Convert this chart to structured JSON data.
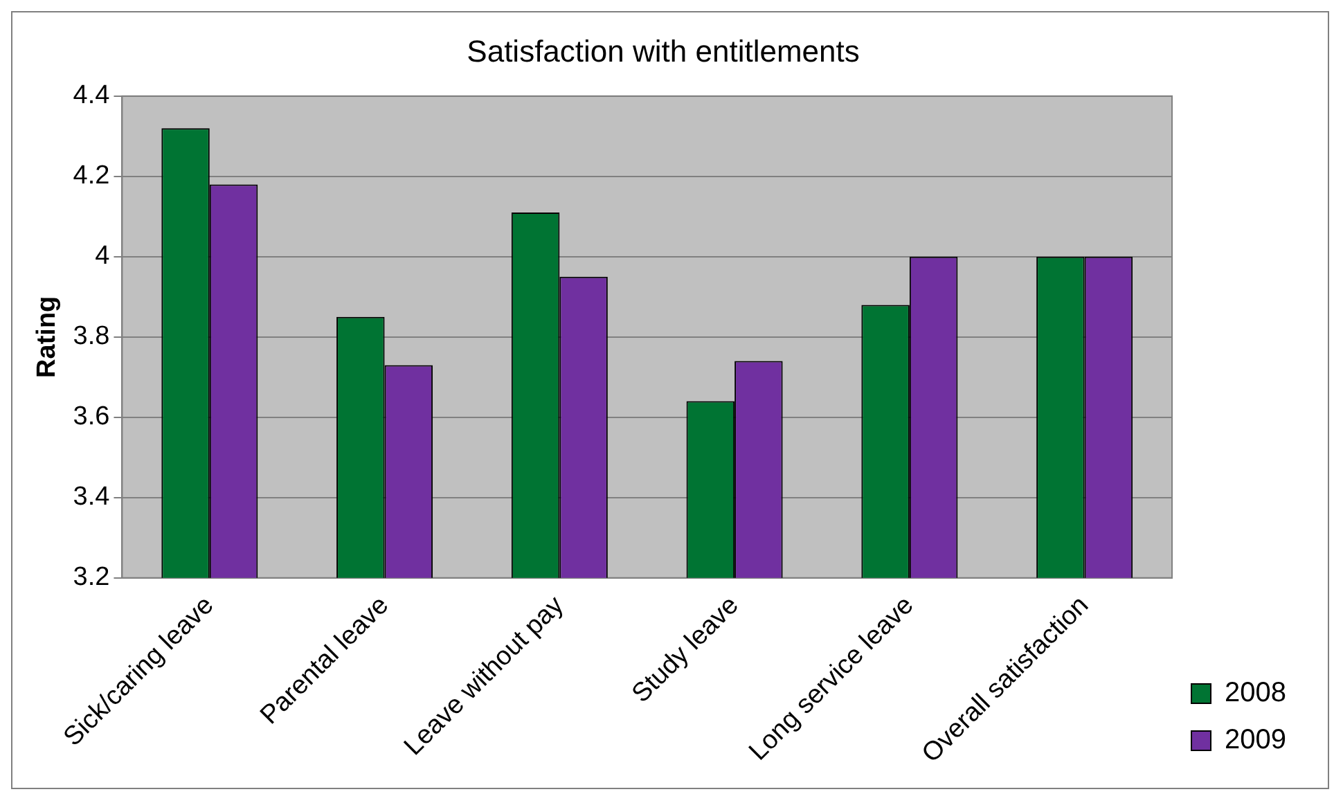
{
  "chart_data": {
    "type": "bar",
    "title": "Satisfaction with entitlements",
    "ylabel": "Rating",
    "categories": [
      "Sick/caring leave",
      "Parental leave",
      "Leave without pay",
      "Study leave",
      "Long service leave",
      "Overall satisfaction"
    ],
    "series": [
      {
        "name": "2008",
        "color": "#007433",
        "values": [
          4.32,
          3.85,
          4.11,
          3.64,
          3.88,
          4.0
        ]
      },
      {
        "name": "2009",
        "color": "#7030a0",
        "values": [
          4.18,
          3.73,
          3.95,
          3.74,
          4.0,
          4.0
        ]
      }
    ],
    "ylim": [
      3.2,
      4.4
    ],
    "yticks": [
      {
        "value": 3.2,
        "label": "3.2"
      },
      {
        "value": 3.4,
        "label": "3.4"
      },
      {
        "value": 3.6,
        "label": "3.6"
      },
      {
        "value": 3.8,
        "label": "3.8"
      },
      {
        "value": 4,
        "label": "4"
      },
      {
        "value": 4.2,
        "label": "4.2"
      },
      {
        "value": 4.4,
        "label": "4.4"
      }
    ],
    "grid": "y",
    "legend": "right"
  }
}
